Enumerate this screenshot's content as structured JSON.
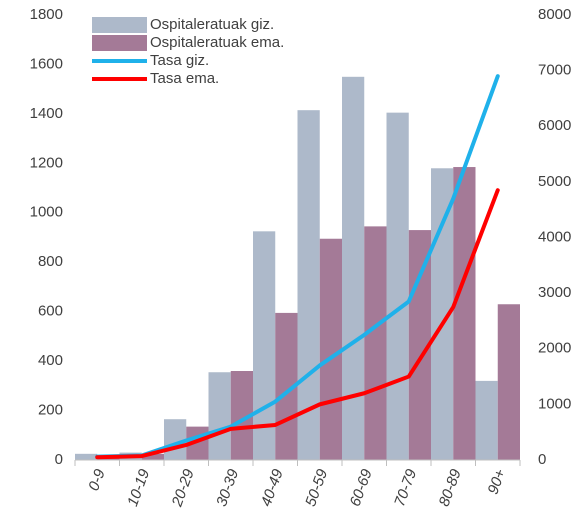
{
  "chart_data": {
    "type": "bar_line",
    "categories": [
      "0-9",
      "10-19",
      "20-29",
      "30-39",
      "40-49",
      "50-59",
      "60-69",
      "70-79",
      "80-89",
      "90+"
    ],
    "series": [
      {
        "name": "Ospitaleratuak giz.",
        "type": "bar",
        "color": "#adb9ca",
        "values": [
          25,
          30,
          165,
          355,
          925,
          1415,
          1550,
          1405,
          1180,
          320
        ]
      },
      {
        "name": "Ospitaleratuak ema.",
        "type": "bar",
        "color": "#a47a97",
        "values": [
          20,
          25,
          135,
          360,
          595,
          895,
          945,
          930,
          1185,
          630
        ]
      },
      {
        "name": "Tasa giz.",
        "type": "line",
        "axis": "y2",
        "color": "#1fb1ea",
        "values": [
          60,
          80,
          350,
          600,
          1050,
          1700,
          2250,
          2850,
          4700,
          6900
        ]
      },
      {
        "name": "Tasa ema.",
        "type": "line",
        "axis": "y2",
        "color": "#ff0000",
        "values": [
          50,
          70,
          270,
          560,
          630,
          1000,
          1200,
          1500,
          2750,
          4850
        ]
      }
    ],
    "ylim": [
      0,
      1800
    ],
    "yticks": [
      0,
      200,
      400,
      600,
      800,
      1000,
      1200,
      1400,
      1600,
      1800
    ],
    "y2lim": [
      0,
      8000
    ],
    "y2ticks": [
      0,
      1000,
      2000,
      3000,
      4000,
      5000,
      6000,
      7000,
      8000
    ],
    "legend": "upper left"
  }
}
